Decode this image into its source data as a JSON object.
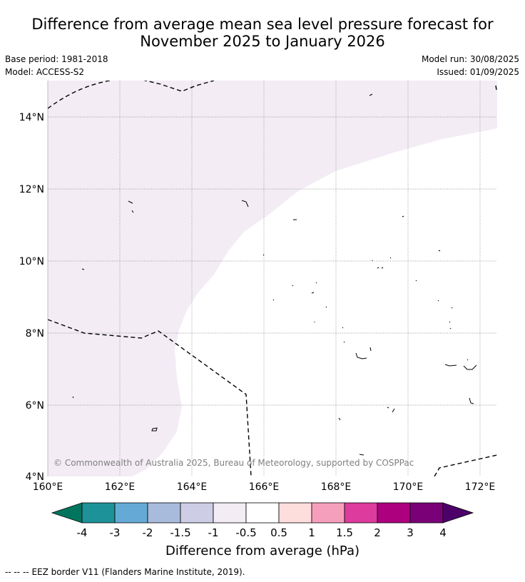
{
  "title_line1": "Difference from average mean sea level pressure forecast for",
  "title_line2": "November 2025 to January 2026",
  "base_period": "Base period: 1981-2018",
  "model": "Model: ACCESS-S2",
  "model_run": "Model run: 30/08/2025",
  "issued": "Issued: 01/09/2025",
  "copyright": "© Commonwealth of Australia 2025, Bureau of Meteorology, supported by COSPPac",
  "map": {
    "lon_range": [
      160,
      172.5
    ],
    "lat_range": [
      4,
      15
    ],
    "x_ticks": [
      "160°E",
      "162°E",
      "164°E",
      "166°E",
      "168°E",
      "170°E",
      "172°E"
    ],
    "y_ticks": [
      "4°N",
      "6°N",
      "8°N",
      "10°N",
      "12°N",
      "14°N"
    ],
    "shaded_category": "-1 to -0.5 hPa",
    "shaded_color": "#f3ecf5"
  },
  "colorbar": {
    "title": "Difference from average (hPa)",
    "ticks": [
      "-4",
      "-3",
      "-2",
      "-1.5",
      "-1",
      "-0.5",
      "0.5",
      "1",
      "1.5",
      "2",
      "3",
      "4"
    ],
    "under_color": "#00755e",
    "over_color": "#4c0068",
    "colors": [
      "#1e9299",
      "#65aad6",
      "#a8bbdc",
      "#cdcde6",
      "#f3ecf5",
      "#ffffff",
      "#fedddd",
      "#f69fbc",
      "#dd3b9d",
      "#ad007f",
      "#7a0077"
    ]
  },
  "legend": {
    "eez_symbol": "-- -- --",
    "eez_label": "EEZ border V11 (Flanders Marine Institute, 2019)."
  }
}
